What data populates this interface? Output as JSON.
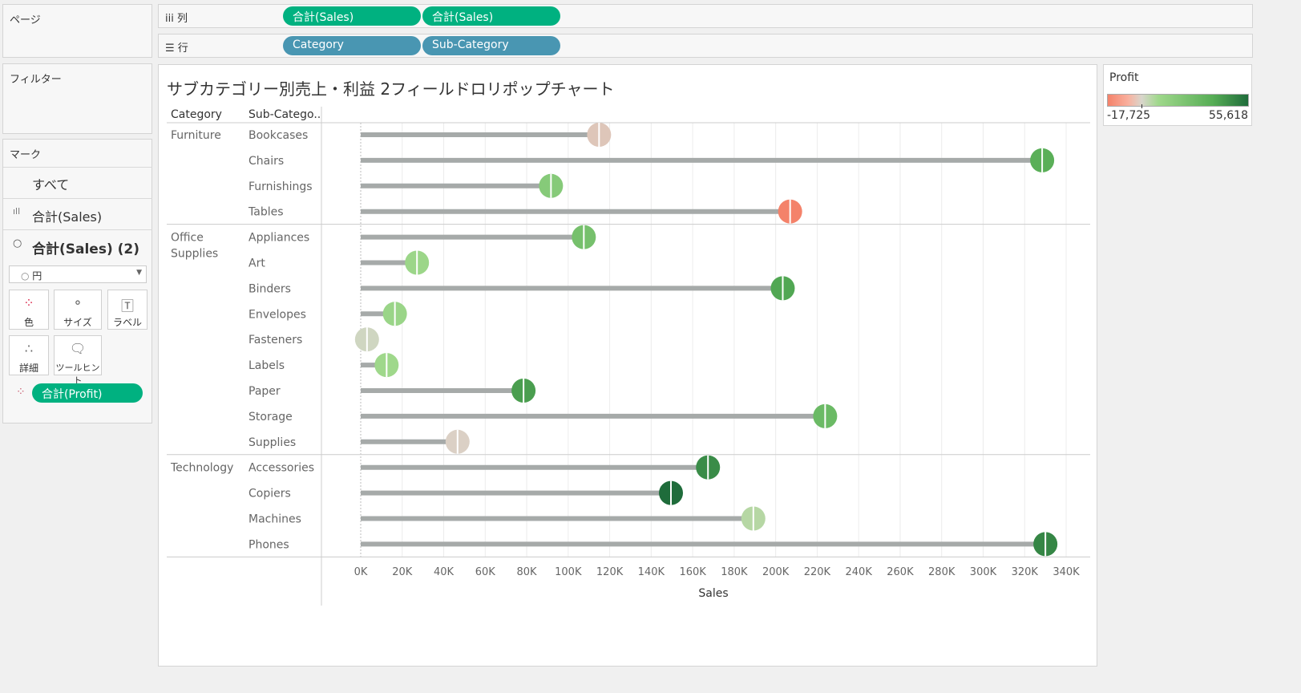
{
  "shelves": {
    "pages_label": "ページ",
    "columns_label": "列",
    "rows_label": "行",
    "columns": [
      "合計(Sales)",
      "合計(Sales)"
    ],
    "rows": [
      "Category",
      "Sub-Category"
    ],
    "filters_label": "フィルター"
  },
  "marks": {
    "title": "マーク",
    "all": "すべて",
    "layer1": "合計(Sales)",
    "layer2": "合計(Sales) (2)",
    "mark_type": "円",
    "buttons": {
      "color": "色",
      "size": "サイズ",
      "label": "ラベル",
      "detail": "詳細",
      "tooltip": "ツールヒント"
    },
    "color_pill": "合計(Profit)"
  },
  "legend": {
    "title": "Profit",
    "min": "-17,725",
    "max": "55,618",
    "colors": {
      "neg": "#f4826a",
      "zero": "#d9d6cc",
      "pos_light": "#9fd88b",
      "pos_mid": "#56ad55",
      "pos_dark": "#1f6c3b"
    }
  },
  "chart_data": {
    "type": "lollipop",
    "title": "サブカテゴリー別売上・利益 2フィールドロリポップチャート",
    "row_headers": [
      "Category",
      "Sub-Catego.."
    ],
    "xlabel": "Sales",
    "xlim": [
      0,
      340000
    ],
    "xticks": [
      "0K",
      "20K",
      "40K",
      "60K",
      "80K",
      "100K",
      "120K",
      "140K",
      "160K",
      "180K",
      "200K",
      "220K",
      "240K",
      "260K",
      "280K",
      "300K",
      "320K",
      "340K"
    ],
    "groups": [
      {
        "category": "Furniture",
        "items": [
          {
            "sub": "Bookcases",
            "sales": 114880,
            "profit": -3473
          },
          {
            "sub": "Chairs",
            "sales": 328449,
            "profit": 26590
          },
          {
            "sub": "Furnishings",
            "sales": 91705,
            "profit": 13059
          },
          {
            "sub": "Tables",
            "sales": 206966,
            "profit": -17725
          }
        ]
      },
      {
        "category": "Office Supplies",
        "items": [
          {
            "sub": "Appliances",
            "sales": 107532,
            "profit": 18138
          },
          {
            "sub": "Art",
            "sales": 27119,
            "profit": 6528
          },
          {
            "sub": "Binders",
            "sales": 203413,
            "profit": 30222
          },
          {
            "sub": "Envelopes",
            "sales": 16476,
            "profit": 6964
          },
          {
            "sub": "Fasteners",
            "sales": 3024,
            "profit": 950
          },
          {
            "sub": "Labels",
            "sales": 12486,
            "profit": 5546
          },
          {
            "sub": "Paper",
            "sales": 78479,
            "profit": 34054
          },
          {
            "sub": "Storage",
            "sales": 223844,
            "profit": 21279
          },
          {
            "sub": "Supplies",
            "sales": 46674,
            "profit": -1189
          }
        ]
      },
      {
        "category": "Technology",
        "items": [
          {
            "sub": "Accessories",
            "sales": 167380,
            "profit": 41937
          },
          {
            "sub": "Copiers",
            "sales": 149528,
            "profit": 55618
          },
          {
            "sub": "Machines",
            "sales": 189239,
            "profit": 3385
          },
          {
            "sub": "Phones",
            "sales": 330007,
            "profit": 44516
          }
        ]
      }
    ],
    "color_range": [
      -17725,
      55618
    ]
  }
}
